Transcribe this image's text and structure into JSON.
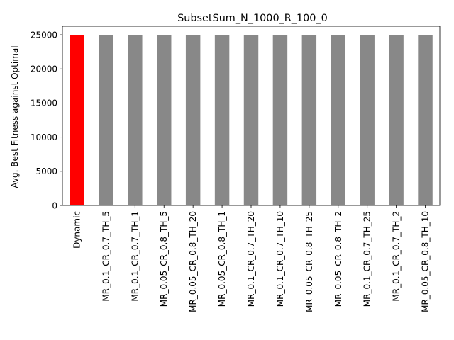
{
  "chart_data": {
    "type": "bar",
    "title": "SubsetSum_N_1000_R_100_0",
    "xlabel": "",
    "ylabel": "Avg. Best Fitness against Optimal",
    "ylim": [
      0,
      26250
    ],
    "yticks": [
      0,
      5000,
      10000,
      15000,
      20000,
      25000
    ],
    "ytick_labels": [
      "0",
      "5000",
      "10000",
      "15000",
      "20000",
      "25000"
    ],
    "categories": [
      "Dynamic",
      "MR_0.1_CR_0.7_TH_5",
      "MR_0.1_CR_0.7_TH_1",
      "MR_0.05_CR_0.8_TH_5",
      "MR_0.05_CR_0.8_TH_20",
      "MR_0.05_CR_0.8_TH_1",
      "MR_0.1_CR_0.7_TH_20",
      "MR_0.1_CR_0.7_TH_10",
      "MR_0.05_CR_0.8_TH_25",
      "MR_0.05_CR_0.8_TH_2",
      "MR_0.1_CR_0.7_TH_25",
      "MR_0.1_CR_0.7_TH_2",
      "MR_0.05_CR_0.8_TH_10"
    ],
    "values": [
      25000,
      25000,
      25000,
      25000,
      25000,
      25000,
      25000,
      25000,
      25000,
      25000,
      25000,
      25000,
      25000
    ],
    "bar_colors": [
      "#ff0000",
      "#888888",
      "#888888",
      "#888888",
      "#888888",
      "#888888",
      "#888888",
      "#888888",
      "#888888",
      "#888888",
      "#888888",
      "#888888",
      "#888888"
    ],
    "grid": false,
    "legend": "none"
  }
}
